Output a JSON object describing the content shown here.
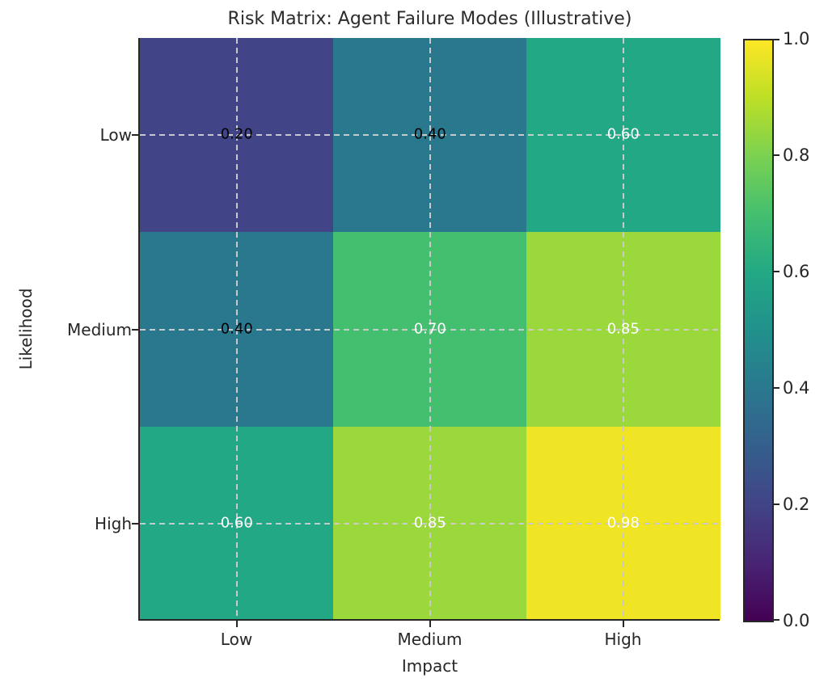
{
  "chart_data": {
    "type": "heatmap",
    "title": "Risk Matrix: Agent Failure Modes (Illustrative)",
    "xlabel": "Impact",
    "ylabel": "Likelihood",
    "x_categories": [
      "Low",
      "Medium",
      "High"
    ],
    "y_categories": [
      "Low",
      "Medium",
      "High"
    ],
    "rows": [
      {
        "y": "Low",
        "values": [
          0.2,
          0.4,
          0.6
        ]
      },
      {
        "y": "Medium",
        "values": [
          0.4,
          0.7,
          0.85
        ]
      },
      {
        "y": "High",
        "values": [
          0.6,
          0.85,
          0.98
        ]
      }
    ],
    "cell_labels": [
      [
        "0.20",
        "0.40",
        "0.60"
      ],
      [
        "0.40",
        "0.70",
        "0.85"
      ],
      [
        "0.60",
        "0.85",
        "0.98"
      ]
    ],
    "cell_colors": [
      [
        "#414487",
        "#2a788e",
        "#22a884"
      ],
      [
        "#2a788e",
        "#44bf70",
        "#9bd83b"
      ],
      [
        "#22a884",
        "#9bd83b",
        "#f0e525"
      ]
    ],
    "cell_text_colors": [
      [
        "#000000",
        "#000000",
        "#ffffff"
      ],
      [
        "#000000",
        "#ffffff",
        "#ffffff"
      ],
      [
        "#ffffff",
        "#ffffff",
        "#ffffff"
      ]
    ],
    "colormap": "viridis",
    "vmin": 0.0,
    "vmax": 1.0,
    "grid": true,
    "grid_style": "dashed",
    "grid_color": "#c9c9c9",
    "legend_position": "right-colorbar",
    "colorbar": {
      "tick_labels": [
        "0.0",
        "0.2",
        "0.4",
        "0.6",
        "0.8",
        "1.0"
      ],
      "gradient_stops": [
        "#440154",
        "#482475",
        "#414487",
        "#355f8d",
        "#2a788e",
        "#21918c",
        "#22a884",
        "#44bf70",
        "#7ad151",
        "#bddf26",
        "#fde725"
      ]
    }
  }
}
